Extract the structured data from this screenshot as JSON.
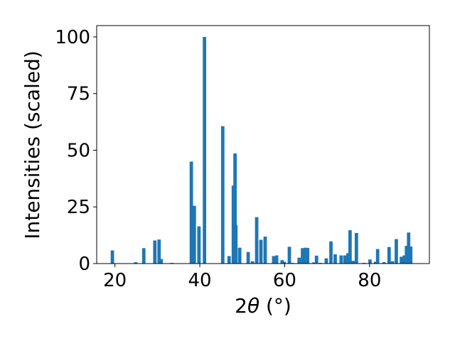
{
  "chart_data": {
    "type": "bar",
    "title": "",
    "xlabel_text": "2",
    "xlabel_symbol": "θ",
    "xlabel_unit": " (°)",
    "ylabel": "Intensities (scaled)",
    "xlim": [
      15.7,
      94.1
    ],
    "ylim": [
      0,
      105
    ],
    "xticks": [
      20,
      40,
      60,
      80
    ],
    "yticks": [
      0,
      25,
      50,
      75,
      100
    ],
    "bar_color": "#1f77b4",
    "bar_width": 0.8,
    "grid": false,
    "series": [
      {
        "x": [
          19.4,
          24.9,
          26.8,
          29.4,
          30.4,
          30.9,
          33.4,
          38.0,
          38.7,
          39.8,
          41.1,
          45.4,
          46.9,
          47.9,
          48.3,
          48.5,
          49.4,
          51.4,
          52.4,
          53.4,
          54.4,
          55.4,
          57.4,
          58.1,
          59.4,
          59.9,
          61.1,
          61.8,
          63.4,
          64.2,
          64.9,
          65.4,
          66.8,
          67.5,
          68.4,
          69.8,
          70.9,
          71.9,
          73.3,
          74.2,
          74.9,
          75.4,
          76.1,
          76.9,
          78.7,
          80.1,
          81.4,
          81.9,
          83.4,
          84.6,
          85.4,
          86.3,
          87.5,
          88.2,
          88.7,
          89.2,
          89.7
        ],
        "y": [
          5.8,
          0.6,
          6.8,
          10.2,
          10.6,
          2.0,
          0.3,
          45.0,
          25.5,
          16.4,
          100,
          60.6,
          3.3,
          34.4,
          48.6,
          17.0,
          7.0,
          5.1,
          1.0,
          20.5,
          10.5,
          11.9,
          3.3,
          3.6,
          1.5,
          0.8,
          7.4,
          0.3,
          2.6,
          6.8,
          7.0,
          6.9,
          0.5,
          3.5,
          0.3,
          2.3,
          9.8,
          4.1,
          3.6,
          3.6,
          4.6,
          14.7,
          1.2,
          13.5,
          0.3,
          1.8,
          0.8,
          6.4,
          0.6,
          7.3,
          1.0,
          10.8,
          3.0,
          3.6,
          7.8,
          13.7,
          7.5
        ]
      }
    ]
  }
}
